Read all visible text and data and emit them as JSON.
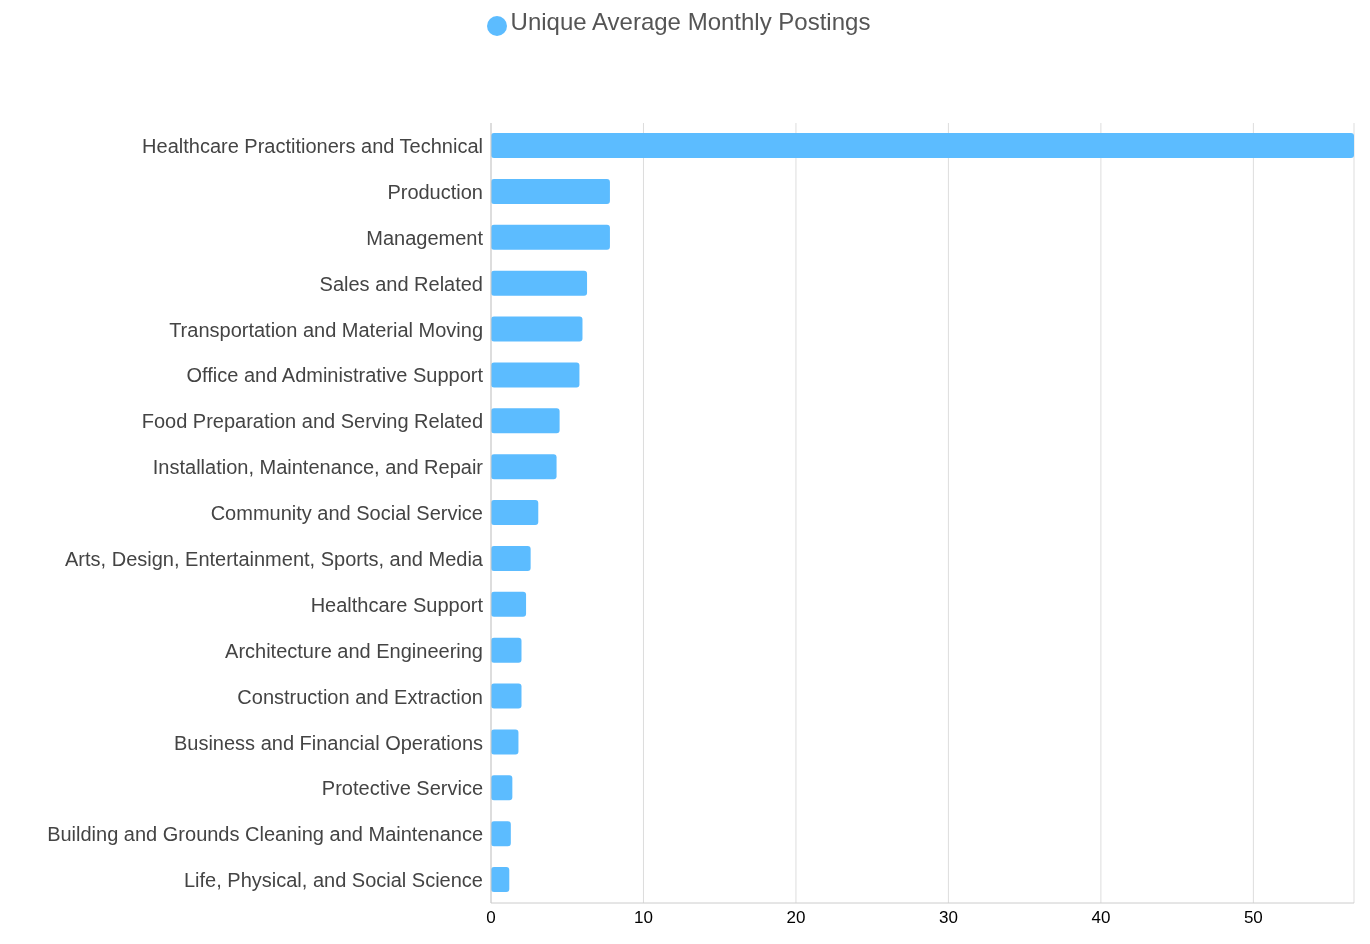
{
  "chart_data": {
    "type": "bar",
    "orientation": "horizontal",
    "categories": [
      "Healthcare Practitioners and Technical",
      "Production",
      "Management",
      "Sales and Related",
      "Transportation and Material Moving",
      "Office and Administrative Support",
      "Food Preparation and Serving Related",
      "Installation, Maintenance, and Repair",
      "Community and Social Service",
      "Arts, Design, Entertainment, Sports, and Media",
      "Healthcare Support",
      "Architecture and Engineering",
      "Construction and Extraction",
      "Business and Financial Operations",
      "Protective Service",
      "Building and Grounds Cleaning and Maintenance",
      "Life, Physical, and Social Science"
    ],
    "series": [
      {
        "name": "Unique Average Monthly Postings",
        "color": "#5cbcff",
        "values": [
          56.6,
          7.8,
          7.8,
          6.3,
          6.0,
          5.8,
          4.5,
          4.3,
          3.1,
          2.6,
          2.3,
          2.0,
          2.0,
          1.8,
          1.4,
          1.3,
          1.2
        ]
      }
    ],
    "xlim": [
      0,
      56.6
    ],
    "xticks": [
      0,
      10,
      20,
      30,
      40,
      50
    ],
    "grid": "x",
    "legend": "top"
  }
}
